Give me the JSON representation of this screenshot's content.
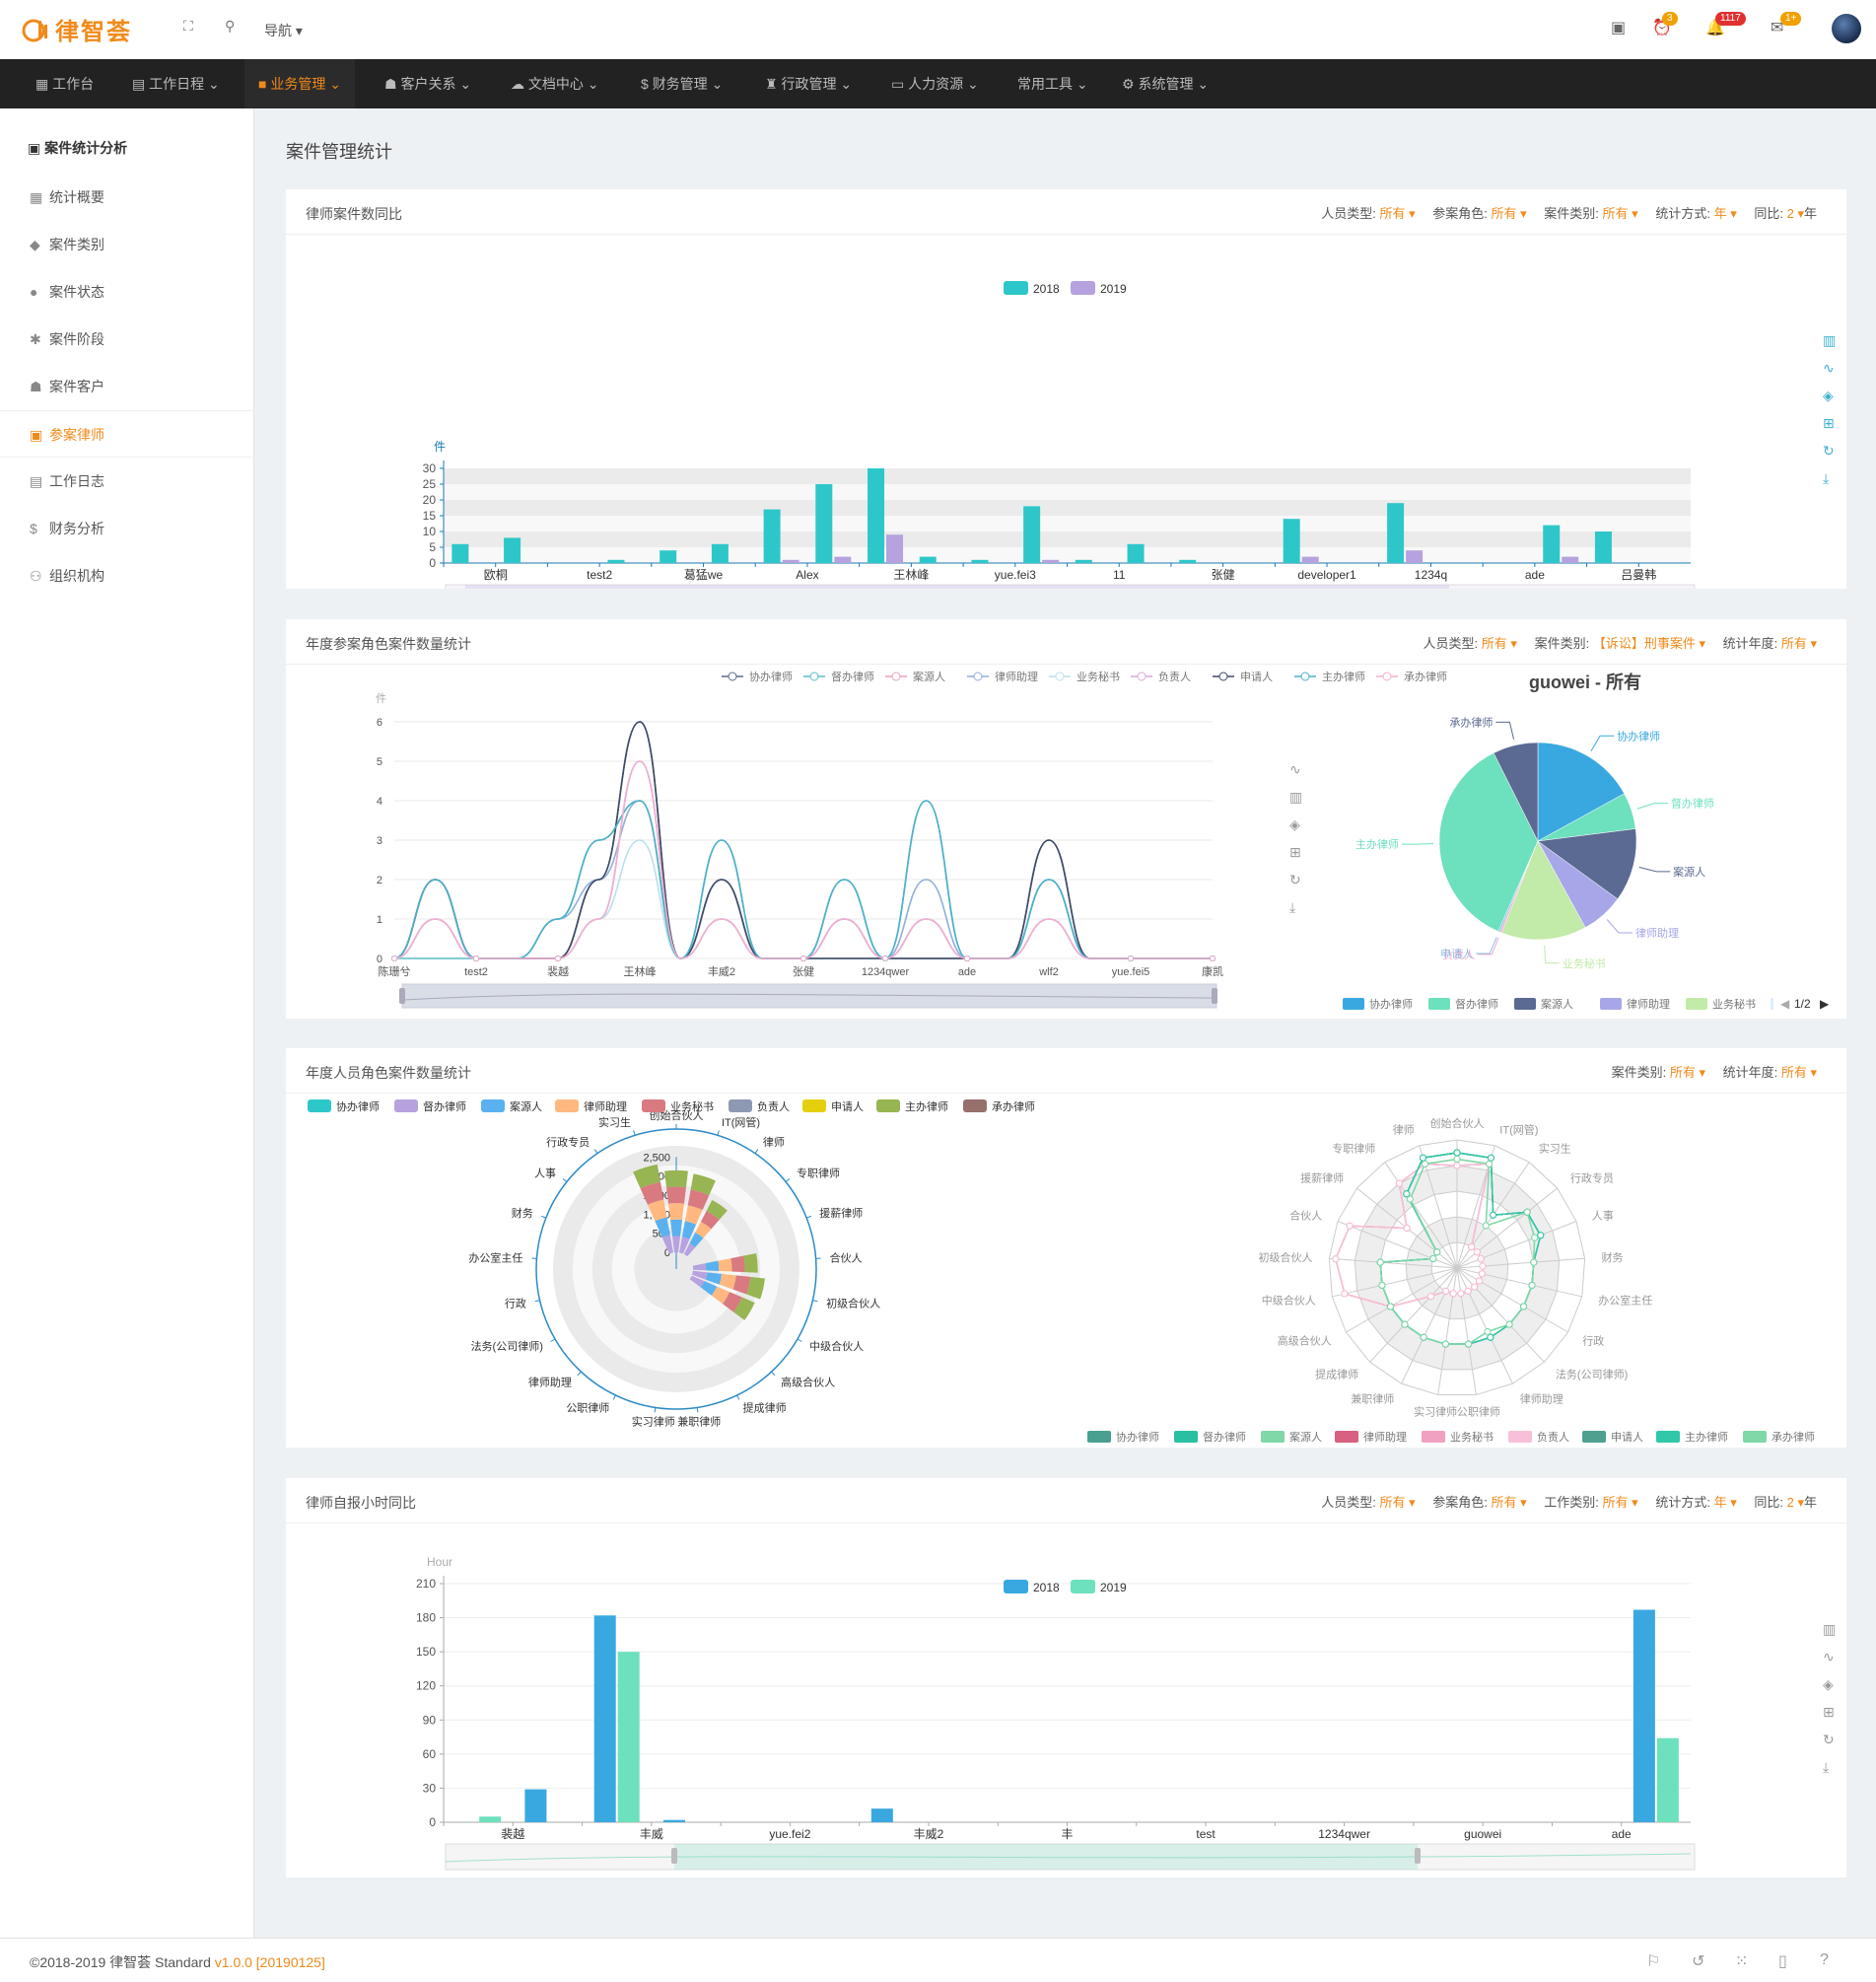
{
  "app": {
    "logo_text": "律智荟",
    "nav_label": "导航",
    "badges": {
      "tasks": "3",
      "notifications": "1117",
      "mail": "1+"
    }
  },
  "menu": [
    {
      "label": "工作台",
      "icon": "grid-icon"
    },
    {
      "label": "工作日程",
      "icon": "calendar-icon"
    },
    {
      "label": "业务管理",
      "icon": "briefcase-icon"
    },
    {
      "label": "客户关系",
      "icon": "users-icon"
    },
    {
      "label": "文档中心",
      "icon": "cloud-icon"
    },
    {
      "label": "财务管理",
      "icon": "dollar-icon"
    },
    {
      "label": "行政管理",
      "icon": "stamp-icon"
    },
    {
      "label": "人力资源",
      "icon": "idcard-icon"
    },
    {
      "label": "常用工具",
      "icon": ""
    },
    {
      "label": "系统管理",
      "icon": "gear-icon"
    }
  ],
  "sidebar": {
    "title": "案件统计分析",
    "items": [
      {
        "label": "统计概要",
        "icon": "grid-icon"
      },
      {
        "label": "案件类别",
        "icon": "tag-icon"
      },
      {
        "label": "案件状态",
        "icon": "status-icon"
      },
      {
        "label": "案件阶段",
        "icon": "puzzle-icon"
      },
      {
        "label": "案件客户",
        "icon": "users-icon"
      },
      {
        "label": "参案律师",
        "icon": "badge-icon"
      },
      {
        "label": "工作日志",
        "icon": "log-icon"
      },
      {
        "label": "财务分析",
        "icon": "dollar-icon"
      },
      {
        "label": "组织机构",
        "icon": "org-icon"
      }
    ]
  },
  "page": {
    "title": "案件管理统计"
  },
  "panels": {
    "p1": {
      "title": "律师案件数同比",
      "filters": [
        {
          "label": "人员类型:",
          "value": "所有"
        },
        {
          "label": "参案角色:",
          "value": "所有"
        },
        {
          "label": "案件类别:",
          "value": "所有"
        },
        {
          "label": "统计方式:",
          "value": "年"
        },
        {
          "label": "同比:",
          "value": "2",
          "suffix": "年"
        }
      ]
    },
    "p2": {
      "title": "年度参案角色案件数量统计",
      "filters": [
        {
          "label": "人员类型:",
          "value": "所有"
        },
        {
          "label": "案件类别:",
          "value": "【诉讼】刑事案件"
        },
        {
          "label": "统计年度:",
          "value": "所有"
        }
      ]
    },
    "p3": {
      "title": "年度人员角色案件数量统计",
      "filters": [
        {
          "label": "案件类别:",
          "value": "所有"
        },
        {
          "label": "统计年度:",
          "value": "所有"
        }
      ]
    },
    "p4": {
      "title": "律师自报小时同比",
      "filters": [
        {
          "label": "人员类型:",
          "value": "所有"
        },
        {
          "label": "参案角色:",
          "value": "所有"
        },
        {
          "label": "工作类别:",
          "value": "所有"
        },
        {
          "label": "统计方式:",
          "value": "年"
        },
        {
          "label": "同比:",
          "value": "2",
          "suffix": "年"
        }
      ]
    }
  },
  "chart_data": [
    {
      "type": "bar",
      "ylabel": "件",
      "ylim": [
        0,
        30
      ],
      "yticks": [
        0,
        5,
        10,
        15,
        20,
        25,
        30
      ],
      "grid": true,
      "legend_position": "top",
      "colors": [
        "#2ec7c9",
        "#b6a2de"
      ],
      "categories": [
        "欧桐",
        "",
        "test2",
        "",
        "葛猛we",
        "",
        "Alex",
        "",
        "王林峰",
        "",
        "yue.fei3",
        "",
        "11",
        "",
        "张健",
        "",
        "developer1",
        "",
        "1234q",
        "",
        "ade",
        "",
        "吕曼韩",
        ""
      ],
      "series": [
        {
          "name": "2018",
          "values": [
            6,
            8,
            0,
            1,
            4,
            6,
            17,
            25,
            30,
            2,
            1,
            18,
            1,
            6,
            1,
            0,
            14,
            0,
            19,
            0,
            0,
            12,
            10,
            0
          ]
        },
        {
          "name": "2019",
          "values": [
            0,
            0,
            0,
            0,
            0,
            0,
            1,
            2,
            9,
            0,
            0,
            1,
            0,
            0,
            0,
            0,
            2,
            0,
            4,
            0,
            0,
            2,
            0,
            0
          ]
        }
      ]
    },
    {
      "type": "line",
      "ylabel": "件",
      "ylim": [
        0,
        6
      ],
      "yticks": [
        0,
        1,
        2,
        3,
        4,
        5,
        6
      ],
      "legend_position": "top",
      "categories": [
        "陈珊兮",
        "",
        "test2",
        "",
        "裴越",
        "",
        "王林峰",
        "",
        "丰威2",
        "",
        "张健",
        "",
        "1234qwer",
        "",
        "ade",
        "",
        "wlf2",
        "",
        "yue.fei5",
        "",
        "康凯"
      ],
      "series": [
        {
          "name": "协办律师",
          "color": "#5a6a8a",
          "values": [
            0,
            2,
            0,
            0,
            0,
            2,
            6,
            0,
            2,
            0,
            0,
            0,
            0,
            0,
            0,
            0,
            3,
            0,
            0,
            0,
            0
          ]
        },
        {
          "name": "督办律师",
          "color": "#5bbcc8",
          "values": [
            0,
            0,
            0,
            0,
            1,
            3,
            4,
            0,
            3,
            0,
            0,
            2,
            0,
            4,
            0,
            0,
            2,
            0,
            0,
            0,
            0
          ]
        },
        {
          "name": "案源人",
          "color": "#e8a0c0",
          "values": [
            0,
            1,
            0,
            0,
            0,
            1,
            5,
            0,
            1,
            0,
            0,
            1,
            0,
            1,
            0,
            0,
            1,
            0,
            0,
            0,
            0
          ]
        },
        {
          "name": "律师助理",
          "color": "#8fb0d8",
          "values": [
            0,
            2,
            0,
            0,
            1,
            2,
            4,
            0,
            2,
            0,
            0,
            1,
            0,
            2,
            0,
            0,
            2,
            0,
            0,
            0,
            0
          ]
        },
        {
          "name": "业务秘书",
          "color": "#b8e0ea",
          "values": [
            0,
            1,
            0,
            0,
            0,
            1,
            3,
            0,
            1,
            0,
            0,
            0,
            0,
            1,
            0,
            0,
            1,
            0,
            0,
            0,
            0
          ]
        },
        {
          "name": "负责人",
          "color": "#d8a8d8",
          "values": [
            0,
            1,
            0,
            0,
            0,
            1,
            5,
            0,
            1,
            0,
            0,
            1,
            0,
            1,
            0,
            0,
            1,
            0,
            0,
            0,
            0
          ]
        },
        {
          "name": "申请人",
          "color": "#3e4a66",
          "values": [
            0,
            2,
            0,
            0,
            0,
            2,
            6,
            0,
            2,
            0,
            0,
            0,
            0,
            0,
            0,
            0,
            3,
            0,
            0,
            0,
            0
          ]
        },
        {
          "name": "主办律师",
          "color": "#4cb0c8",
          "values": [
            0,
            2,
            0,
            0,
            1,
            3,
            4,
            0,
            3,
            0,
            0,
            2,
            0,
            4,
            0,
            0,
            2,
            0,
            0,
            0,
            0
          ]
        },
        {
          "name": "承办律师",
          "color": "#f0b0d0",
          "values": [
            0,
            1,
            0,
            0,
            0,
            1,
            5,
            0,
            1,
            0,
            0,
            1,
            0,
            1,
            0,
            0,
            1,
            0,
            0,
            0,
            0
          ]
        }
      ]
    },
    {
      "type": "pie",
      "title": "guowei - 所有",
      "legend_position": "bottom",
      "legend_page": "1/2",
      "slices": [
        {
          "name": "协办律师",
          "value": 17,
          "color": "#3aa8e0"
        },
        {
          "name": "督办律师",
          "value": 6,
          "color": "#6de0be"
        },
        {
          "name": "案源人",
          "value": 12,
          "color": "#5b6a92"
        },
        {
          "name": "律师助理",
          "value": 7,
          "color": "#a6a6e8"
        },
        {
          "name": "业务秘书",
          "value": 14,
          "color": "#c2eaa8"
        },
        {
          "name": "负责人",
          "value": 0.3,
          "color": "#f4a6c8"
        },
        {
          "name": "申请人",
          "value": 0.3,
          "color": "#8cc0e8"
        },
        {
          "name": "主办律师",
          "value": 36,
          "color": "#6de0be"
        },
        {
          "name": "承办律师",
          "value": 7.4,
          "color": "#5b6a92"
        }
      ]
    },
    {
      "type": "bar",
      "subtype": "polar-stacked",
      "legend_position": "top",
      "radial_ticks": [
        0,
        500,
        1000,
        1500,
        2000,
        2500
      ],
      "series_names": [
        "协办律师",
        "督办律师",
        "案源人",
        "律师助理",
        "业务秘书",
        "负责人",
        "申请人",
        "主办律师",
        "承办律师"
      ],
      "series_colors": [
        "#2ec7c9",
        "#b6a2de",
        "#5ab1ef",
        "#ffb980",
        "#d87a80",
        "#8d98b3",
        "#e5cf0d",
        "#97b552",
        "#95706d"
      ],
      "categories": [
        "IT(网管)",
        "律师",
        "专职律师",
        "援薪律师",
        "合伙人",
        "初级合伙人",
        "中级合伙人",
        "高级合伙人",
        "提成律师",
        "兼职律师",
        "实习律师",
        "公职律师",
        "律师助理",
        "法务(公司律师)",
        "行政",
        "办公室主任",
        "财务",
        "人事",
        "行政专员",
        "实习生",
        "创始合伙人"
      ],
      "totals": [
        2150,
        2100,
        1600,
        0,
        0,
        1700,
        1900,
        1800,
        0,
        0,
        0,
        0,
        0,
        0,
        0,
        0,
        0,
        0,
        0,
        0,
        2350
      ]
    },
    {
      "type": "radar",
      "legend_position": "bottom",
      "indicators": [
        "创始合伙人",
        "IT(网管)",
        "实习生",
        "行政专员",
        "人事",
        "财务",
        "办公室主任",
        "行政",
        "法务(公司律师)",
        "律师助理",
        "公职律师",
        "实习律师",
        "兼职律师",
        "提成律师",
        "高级合伙人",
        "中级合伙人",
        "初级合伙人",
        "合伙人",
        "援薪律师",
        "专职律师",
        "律师"
      ],
      "series": [
        {
          "name": "协办律师",
          "color": "#4aa090",
          "values": [
            0.9,
            0.9,
            0.5,
            0.7,
            0.7,
            0.6,
            0.6,
            0.6,
            0.6,
            0.6,
            0.6,
            0.6,
            0.6,
            0.6,
            0.6,
            0.6,
            0.6,
            0.2,
            0.2,
            0.7,
            0.9
          ]
        },
        {
          "name": "督办律师",
          "color": "#28c0a0",
          "values": [
            0.9,
            0.9,
            0.5,
            0.7,
            0.7,
            0.6,
            0.6,
            0.6,
            0.6,
            0.6,
            0.6,
            0.6,
            0.6,
            0.6,
            0.6,
            0.6,
            0.6,
            0.2,
            0.2,
            0.7,
            0.9
          ]
        },
        {
          "name": "案源人",
          "color": "#80d8a8",
          "values": [
            0.85,
            0.85,
            0.4,
            0.7,
            0.65,
            0.6,
            0.6,
            0.6,
            0.6,
            0.55,
            0.6,
            0.6,
            0.6,
            0.6,
            0.6,
            0.6,
            0.6,
            0.2,
            0.2,
            0.65,
            0.85
          ]
        },
        {
          "name": "律师助理",
          "color": "#d86080",
          "values": [
            0.8,
            0.85,
            0.2,
            0.2,
            0.2,
            0.2,
            0.2,
            0.2,
            0.2,
            0.2,
            0.2,
            0.2,
            0.2,
            0.3,
            0.6,
            0.9,
            0.95,
            0.9,
            0.5,
            0.8,
            0.85
          ]
        },
        {
          "name": "业务秘书",
          "color": "#f0a0c0",
          "values": [
            0.8,
            0.85,
            0.2,
            0.2,
            0.2,
            0.2,
            0.2,
            0.2,
            0.2,
            0.2,
            0.2,
            0.2,
            0.2,
            0.3,
            0.6,
            0.9,
            0.95,
            0.9,
            0.5,
            0.8,
            0.85
          ]
        },
        {
          "name": "负责人",
          "color": "#f8c0d8",
          "values": [
            0.8,
            0.85,
            0.2,
            0.2,
            0.2,
            0.2,
            0.2,
            0.2,
            0.2,
            0.2,
            0.2,
            0.2,
            0.2,
            0.3,
            0.6,
            0.9,
            0.95,
            0.9,
            0.5,
            0.8,
            0.85
          ]
        },
        {
          "name": "申请人",
          "color": "#50a090",
          "values": [
            0.9,
            0.9,
            0.5,
            0.7,
            0.7,
            0.6,
            0.6,
            0.6,
            0.6,
            0.6,
            0.6,
            0.6,
            0.6,
            0.6,
            0.6,
            0.6,
            0.6,
            0.2,
            0.2,
            0.7,
            0.9
          ]
        },
        {
          "name": "主办律师",
          "color": "#30c8a8",
          "values": [
            0.9,
            0.9,
            0.5,
            0.7,
            0.7,
            0.6,
            0.6,
            0.6,
            0.6,
            0.6,
            0.6,
            0.6,
            0.6,
            0.6,
            0.6,
            0.6,
            0.6,
            0.2,
            0.2,
            0.7,
            0.9
          ]
        },
        {
          "name": "承办律师",
          "color": "#80d8a8",
          "values": [
            0.85,
            0.85,
            0.4,
            0.7,
            0.65,
            0.6,
            0.6,
            0.6,
            0.6,
            0.55,
            0.6,
            0.6,
            0.6,
            0.6,
            0.6,
            0.6,
            0.6,
            0.2,
            0.2,
            0.65,
            0.85
          ]
        }
      ]
    },
    {
      "type": "bar",
      "ylabel": "Hour",
      "ylim": [
        0,
        210
      ],
      "yticks": [
        0,
        30,
        60,
        90,
        120,
        150,
        180,
        210
      ],
      "legend_position": "top",
      "colors": [
        "#3aa8e0",
        "#6de0be"
      ],
      "categories": [
        "裴越",
        "",
        "丰威",
        "",
        "yue.fei2",
        "",
        "丰威2",
        "",
        "丰",
        "",
        "test",
        "",
        "1234qwer",
        "",
        "guowei",
        "",
        "ade",
        ""
      ],
      "series": [
        {
          "name": "2018",
          "values": [
            0,
            29,
            182,
            2,
            0,
            0,
            12,
            0,
            0,
            0,
            0,
            0,
            0,
            0,
            0,
            0,
            0,
            187
          ]
        },
        {
          "name": "2019",
          "values": [
            5,
            0,
            150,
            0,
            0,
            0,
            0,
            0,
            0,
            0,
            0,
            0,
            0,
            0,
            0,
            0,
            0,
            74
          ]
        }
      ]
    }
  ],
  "footer": {
    "copyright": "©2018-2019 律智荟  Standard ",
    "version": "v1.0.0 [20190125]"
  }
}
